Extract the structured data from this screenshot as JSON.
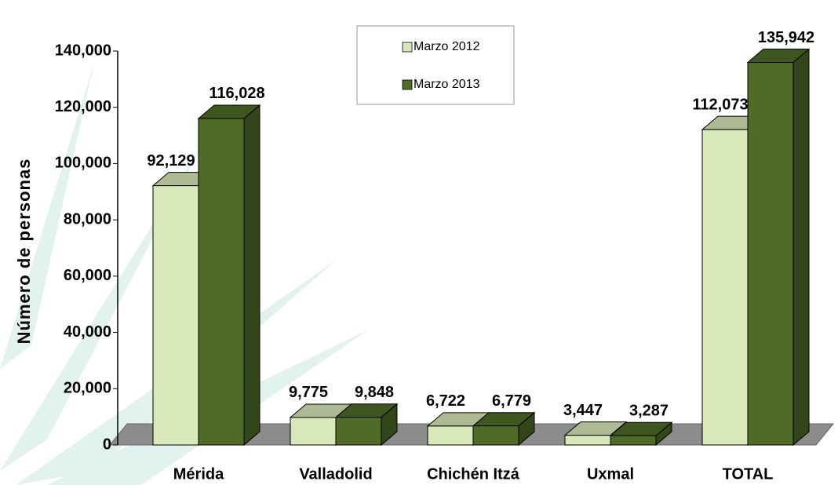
{
  "chart_data": {
    "type": "bar3d",
    "ylabel": "Número de personas",
    "categories": [
      "Mérida",
      "Valladolid",
      "Chichén Itzá",
      "Uxmal",
      "TOTAL"
    ],
    "series": [
      {
        "name": "Marzo 2012",
        "color": "#d9e8b9",
        "values": [
          92129,
          9775,
          6722,
          3447,
          112073
        ],
        "value_labels": [
          "92,129",
          "9,775",
          "6,722",
          "3,447",
          "112,073"
        ]
      },
      {
        "name": "Marzo 2013",
        "color": "#4f6c27",
        "values": [
          116028,
          9848,
          6779,
          3287,
          135942
        ],
        "value_labels": [
          "116,028",
          "9,848",
          "6,779",
          "3,287",
          "135,942"
        ]
      }
    ],
    "ylim": [
      0,
      140000
    ],
    "yticks": [
      0,
      {
        "value": 20000,
        "label": "20,000"
      },
      {
        "value": 40000,
        "label": "40,000"
      },
      {
        "value": 60000,
        "label": "60,000"
      },
      {
        "value": 80000,
        "label": "80,000"
      },
      {
        "value": 100000,
        "label": "100,000"
      },
      {
        "value": 120000,
        "label": "120,000"
      },
      {
        "value": 140000,
        "label": "140,000"
      }
    ]
  }
}
